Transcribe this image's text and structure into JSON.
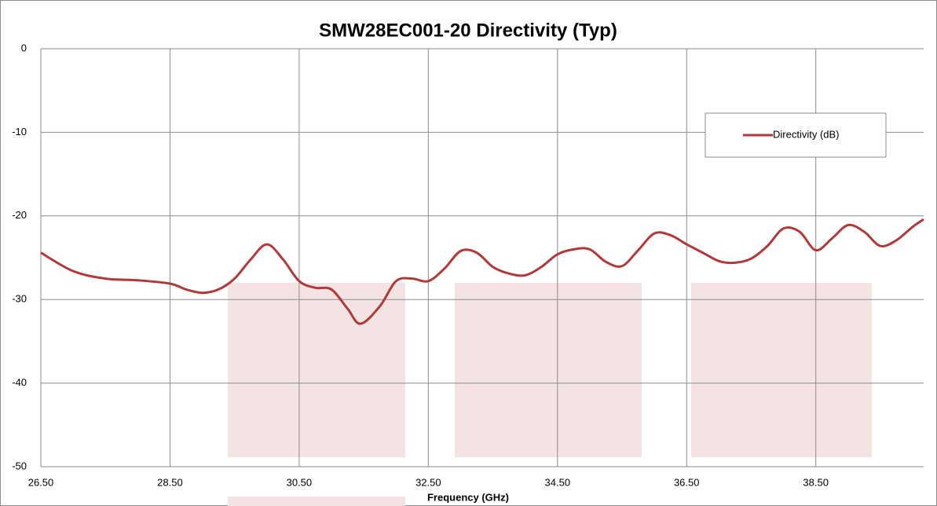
{
  "chart_data": {
    "type": "line",
    "title": "SMW28EC001-20 Directivity (Typ)",
    "x_label": "Frequency (GHz)",
    "x": [
      26.5,
      27.0,
      27.5,
      28.0,
      28.5,
      28.75,
      29.0,
      29.25,
      29.5,
      29.75,
      30.0,
      30.25,
      30.5,
      30.75,
      31.0,
      31.25,
      31.45,
      31.75,
      32.0,
      32.25,
      32.5,
      32.75,
      33.0,
      33.25,
      33.5,
      33.75,
      34.0,
      34.25,
      34.5,
      34.75,
      35.0,
      35.25,
      35.5,
      35.75,
      36.0,
      36.25,
      36.5,
      36.75,
      37.0,
      37.25,
      37.5,
      37.75,
      38.0,
      38.25,
      38.5,
      38.75,
      39.0,
      39.25,
      39.5,
      39.75,
      40.0,
      40.17
    ],
    "series": [
      {
        "name": "Directivity (dB)",
        "color": "#b03a3a",
        "values": [
          -24.4,
          -26.6,
          -27.5,
          -27.7,
          -28.1,
          -28.8,
          -29.2,
          -28.8,
          -27.5,
          -25.2,
          -23.4,
          -25.2,
          -27.8,
          -28.6,
          -28.8,
          -31.1,
          -32.9,
          -30.8,
          -27.8,
          -27.5,
          -27.8,
          -26.3,
          -24.2,
          -24.4,
          -26.1,
          -26.9,
          -27.1,
          -26.1,
          -24.6,
          -24.0,
          -24.0,
          -25.5,
          -26.0,
          -24.1,
          -22.1,
          -22.3,
          -23.4,
          -24.4,
          -25.4,
          -25.6,
          -25.1,
          -23.6,
          -21.5,
          -21.9,
          -24.1,
          -22.7,
          -21.1,
          -21.9,
          -23.6,
          -22.9,
          -21.3,
          -20.4
        ]
      }
    ],
    "xlim": [
      26.5,
      40.17
    ],
    "xticks": [
      {
        "value": 26.5,
        "label": "26.50"
      },
      {
        "value": 28.5,
        "label": "28.50"
      },
      {
        "value": 30.5,
        "label": "30.50"
      },
      {
        "value": 32.5,
        "label": "32.50"
      },
      {
        "value": 34.5,
        "label": "34.50"
      },
      {
        "value": 36.5,
        "label": "36.50"
      },
      {
        "value": 38.5,
        "label": "38.50"
      }
    ],
    "ylim": [
      -50,
      0
    ],
    "yticks": [
      -50,
      -40,
      -30,
      -20,
      -10,
      0
    ],
    "grid": true
  }
}
